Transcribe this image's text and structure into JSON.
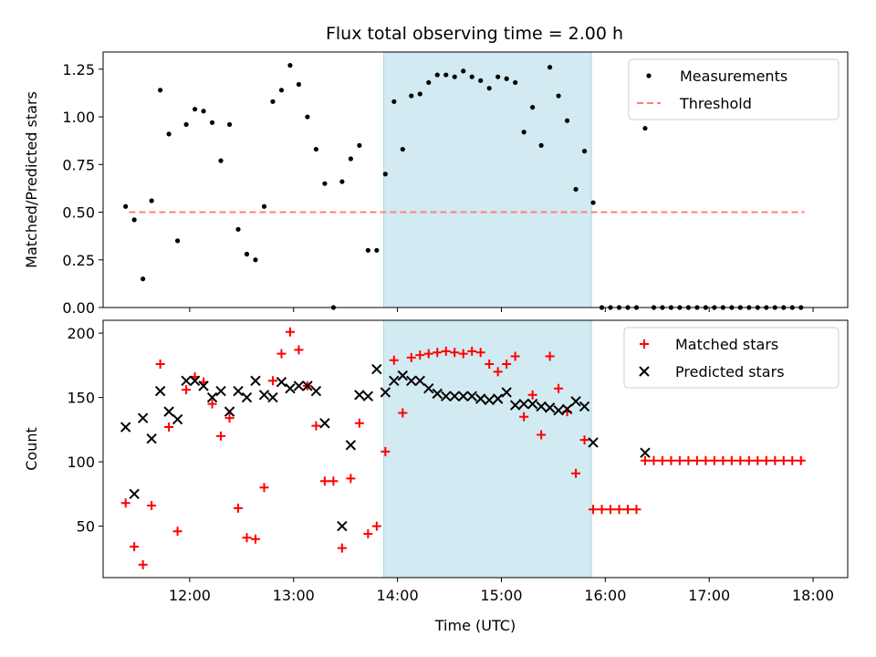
{
  "title": "Flux total observing time = 2.00 h",
  "colors": {
    "highlight": "#add8e6",
    "threshold": "#ff7f7f",
    "matched": "#ff0000",
    "predicted": "#000000"
  },
  "chart_data": [
    {
      "type": "scatter",
      "ylabel": "Matched/Predicted stars",
      "xlim": [
        "11:10",
        "18:20"
      ],
      "ylim": [
        0,
        1.34
      ],
      "yticks": [
        "0.00",
        "0.25",
        "0.50",
        "0.75",
        "1.00",
        "1.25"
      ],
      "highlight_span": [
        "13:52",
        "15:52"
      ],
      "legend": {
        "position": "top-right",
        "entries": [
          "Measurements",
          "Threshold"
        ]
      },
      "threshold": {
        "name": "Threshold",
        "y": 0.5,
        "x_range": [
          "11:25",
          "17:55"
        ]
      },
      "series": [
        {
          "name": "Measurements",
          "marker": "dot",
          "points": [
            [
              "11:23",
              0.53
            ],
            [
              "11:28",
              0.46
            ],
            [
              "11:33",
              0.15
            ],
            [
              "11:38",
              0.56
            ],
            [
              "11:43",
              1.14
            ],
            [
              "11:48",
              0.91
            ],
            [
              "11:53",
              0.35
            ],
            [
              "11:58",
              0.96
            ],
            [
              "12:03",
              1.04
            ],
            [
              "12:08",
              1.03
            ],
            [
              "12:13",
              0.97
            ],
            [
              "12:18",
              0.77
            ],
            [
              "12:23",
              0.96
            ],
            [
              "12:28",
              0.41
            ],
            [
              "12:33",
              0.28
            ],
            [
              "12:38",
              0.25
            ],
            [
              "12:43",
              0.53
            ],
            [
              "12:48",
              1.08
            ],
            [
              "12:53",
              1.14
            ],
            [
              "12:58",
              1.27
            ],
            [
              "13:03",
              1.17
            ],
            [
              "13:08",
              1.0
            ],
            [
              "13:13",
              0.83
            ],
            [
              "13:18",
              0.65
            ],
            [
              "13:23",
              0.0
            ],
            [
              "13:28",
              0.66
            ],
            [
              "13:33",
              0.78
            ],
            [
              "13:38",
              0.85
            ],
            [
              "13:43",
              0.3
            ],
            [
              "13:48",
              0.3
            ],
            [
              "13:53",
              0.7
            ],
            [
              "13:58",
              1.08
            ],
            [
              "14:03",
              0.83
            ],
            [
              "14:08",
              1.11
            ],
            [
              "14:13",
              1.12
            ],
            [
              "14:18",
              1.18
            ],
            [
              "14:23",
              1.22
            ],
            [
              "14:28",
              1.22
            ],
            [
              "14:33",
              1.21
            ],
            [
              "14:38",
              1.24
            ],
            [
              "14:43",
              1.21
            ],
            [
              "14:48",
              1.19
            ],
            [
              "14:53",
              1.15
            ],
            [
              "14:58",
              1.21
            ],
            [
              "15:03",
              1.2
            ],
            [
              "15:08",
              1.18
            ],
            [
              "15:13",
              0.92
            ],
            [
              "15:18",
              1.05
            ],
            [
              "15:23",
              0.85
            ],
            [
              "15:28",
              1.26
            ],
            [
              "15:33",
              1.11
            ],
            [
              "15:38",
              0.98
            ],
            [
              "15:43",
              0.62
            ],
            [
              "15:48",
              0.82
            ],
            [
              "15:53",
              0.55
            ],
            [
              "15:58",
              0.0
            ],
            [
              "16:03",
              0.0
            ],
            [
              "16:08",
              0.0
            ],
            [
              "16:13",
              0.0
            ],
            [
              "16:18",
              0.0
            ],
            [
              "16:23",
              0.94
            ],
            [
              "16:28",
              0.0
            ],
            [
              "16:33",
              0.0
            ],
            [
              "16:38",
              0.0
            ],
            [
              "16:43",
              0.0
            ],
            [
              "16:48",
              0.0
            ],
            [
              "16:53",
              0.0
            ],
            [
              "16:58",
              0.0
            ],
            [
              "17:03",
              0.0
            ],
            [
              "17:08",
              0.0
            ],
            [
              "17:13",
              0.0
            ],
            [
              "17:18",
              0.0
            ],
            [
              "17:23",
              0.0
            ],
            [
              "17:28",
              0.0
            ],
            [
              "17:33",
              0.0
            ],
            [
              "17:38",
              0.0
            ],
            [
              "17:43",
              0.0
            ],
            [
              "17:48",
              0.0
            ],
            [
              "17:53",
              0.0
            ]
          ]
        }
      ]
    },
    {
      "type": "scatter",
      "xlabel": "Time (UTC)",
      "ylabel": "Count",
      "xlim": [
        "11:10",
        "18:20"
      ],
      "ylim": [
        10,
        210
      ],
      "xticks": [
        "12:00",
        "13:00",
        "14:00",
        "15:00",
        "16:00",
        "17:00",
        "18:00"
      ],
      "yticks": [
        "50",
        "100",
        "150",
        "200"
      ],
      "highlight_span": [
        "13:52",
        "15:52"
      ],
      "legend": {
        "position": "top-right",
        "entries": [
          "Matched stars",
          "Predicted stars"
        ]
      },
      "series": [
        {
          "name": "Matched stars",
          "marker": "plus",
          "points": [
            [
              "11:23",
              68
            ],
            [
              "11:28",
              34
            ],
            [
              "11:33",
              20
            ],
            [
              "11:38",
              66
            ],
            [
              "11:43",
              176
            ],
            [
              "11:48",
              127
            ],
            [
              "11:53",
              46
            ],
            [
              "11:58",
              156
            ],
            [
              "12:03",
              166
            ],
            [
              "12:08",
              162
            ],
            [
              "12:13",
              145
            ],
            [
              "12:18",
              120
            ],
            [
              "12:23",
              134
            ],
            [
              "12:28",
              64
            ],
            [
              "12:33",
              41
            ],
            [
              "12:38",
              40
            ],
            [
              "12:43",
              80
            ],
            [
              "12:48",
              163
            ],
            [
              "12:53",
              184
            ],
            [
              "12:58",
              201
            ],
            [
              "13:03",
              187
            ],
            [
              "13:08",
              159
            ],
            [
              "13:13",
              128
            ],
            [
              "13:18",
              85
            ],
            [
              "13:23",
              85
            ],
            [
              "13:28",
              33
            ],
            [
              "13:33",
              87
            ],
            [
              "13:38",
              130
            ],
            [
              "13:43",
              44
            ],
            [
              "13:48",
              50
            ],
            [
              "13:53",
              108
            ],
            [
              "13:58",
              179
            ],
            [
              "14:03",
              138
            ],
            [
              "14:08",
              181
            ],
            [
              "14:13",
              183
            ],
            [
              "14:18",
              184
            ],
            [
              "14:23",
              185
            ],
            [
              "14:28",
              186
            ],
            [
              "14:33",
              185
            ],
            [
              "14:38",
              184
            ],
            [
              "14:43",
              186
            ],
            [
              "14:48",
              185
            ],
            [
              "14:53",
              176
            ],
            [
              "14:58",
              170
            ],
            [
              "15:03",
              176
            ],
            [
              "15:08",
              182
            ],
            [
              "15:13",
              135
            ],
            [
              "15:18",
              152
            ],
            [
              "15:23",
              121
            ],
            [
              "15:28",
              182
            ],
            [
              "15:33",
              157
            ],
            [
              "15:38",
              139
            ],
            [
              "15:43",
              91
            ],
            [
              "15:48",
              117
            ],
            [
              "15:53",
              63
            ],
            [
              "15:58",
              63
            ],
            [
              "16:03",
              63
            ],
            [
              "16:08",
              63
            ],
            [
              "16:13",
              63
            ],
            [
              "16:18",
              63
            ],
            [
              "16:23",
              101
            ],
            [
              "16:28",
              101
            ],
            [
              "16:33",
              101
            ],
            [
              "16:38",
              101
            ],
            [
              "16:43",
              101
            ],
            [
              "16:48",
              101
            ],
            [
              "16:53",
              101
            ],
            [
              "16:58",
              101
            ],
            [
              "17:03",
              101
            ],
            [
              "17:08",
              101
            ],
            [
              "17:13",
              101
            ],
            [
              "17:18",
              101
            ],
            [
              "17:23",
              101
            ],
            [
              "17:28",
              101
            ],
            [
              "17:33",
              101
            ],
            [
              "17:38",
              101
            ],
            [
              "17:43",
              101
            ],
            [
              "17:48",
              101
            ],
            [
              "17:53",
              101
            ]
          ]
        },
        {
          "name": "Predicted stars",
          "marker": "x",
          "points": [
            [
              "11:23",
              127
            ],
            [
              "11:28",
              75
            ],
            [
              "11:33",
              134
            ],
            [
              "11:38",
              118
            ],
            [
              "11:43",
              155
            ],
            [
              "11:48",
              139
            ],
            [
              "11:53",
              133
            ],
            [
              "11:58",
              163
            ],
            [
              "12:03",
              163
            ],
            [
              "12:08",
              159
            ],
            [
              "12:13",
              150
            ],
            [
              "12:18",
              155
            ],
            [
              "12:23",
              139
            ],
            [
              "12:28",
              155
            ],
            [
              "12:33",
              150
            ],
            [
              "12:38",
              163
            ],
            [
              "12:43",
              152
            ],
            [
              "12:48",
              150
            ],
            [
              "12:53",
              162
            ],
            [
              "12:58",
              157
            ],
            [
              "13:03",
              159
            ],
            [
              "13:08",
              159
            ],
            [
              "13:13",
              155
            ],
            [
              "13:18",
              130
            ],
            [
              "13:28",
              50
            ],
            [
              "13:33",
              113
            ],
            [
              "13:38",
              152
            ],
            [
              "13:43",
              151
            ],
            [
              "13:48",
              172
            ],
            [
              "13:53",
              154
            ],
            [
              "13:58",
              163
            ],
            [
              "14:03",
              167
            ],
            [
              "14:08",
              163
            ],
            [
              "14:13",
              163
            ],
            [
              "14:18",
              157
            ],
            [
              "14:23",
              153
            ],
            [
              "14:28",
              151
            ],
            [
              "14:33",
              151
            ],
            [
              "14:38",
              151
            ],
            [
              "14:43",
              151
            ],
            [
              "14:48",
              149
            ],
            [
              "14:53",
              148
            ],
            [
              "14:58",
              149
            ],
            [
              "15:03",
              154
            ],
            [
              "15:08",
              144
            ],
            [
              "15:13",
              145
            ],
            [
              "15:18",
              145
            ],
            [
              "15:23",
              143
            ],
            [
              "15:28",
              142
            ],
            [
              "15:33",
              140
            ],
            [
              "15:38",
              141
            ],
            [
              "15:43",
              147
            ],
            [
              "15:48",
              143
            ],
            [
              "15:53",
              115
            ],
            [
              "16:23",
              107
            ]
          ]
        }
      ]
    }
  ]
}
